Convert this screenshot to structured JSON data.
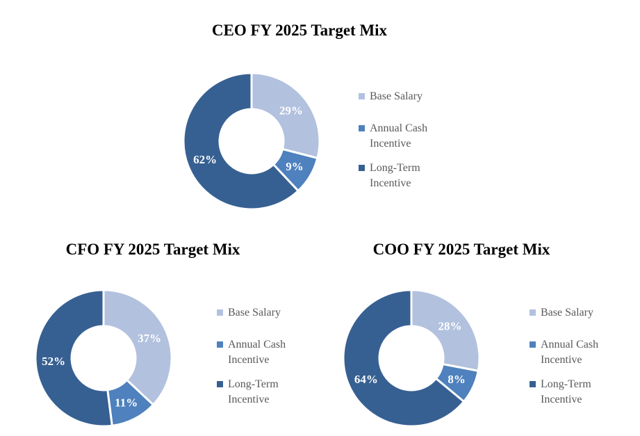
{
  "series_colors": [
    "#B2C1DE",
    "#4E81BD",
    "#376092"
  ],
  "colors": {
    "base_salary": "#B2C1DE",
    "annual_cash_incentive": "#4E81BD",
    "long_term_incentive": "#376092",
    "slice_border": "#FFFFFF",
    "slice_label_text": "#FFFFFF",
    "legend_text": "#595959",
    "title_text": "#000000",
    "background": "#FFFFFF"
  },
  "chart_data": [
    {
      "type": "pie",
      "subtype": "donut",
      "title": "CEO FY 2025 Target Mix",
      "categories": [
        "Base Salary",
        "Annual Cash Incentive",
        "Long-Term Incentive"
      ],
      "values": [
        29,
        9,
        62
      ],
      "data_labels": [
        "29%",
        "9%",
        "62%"
      ],
      "legend_entries": [
        "Base Salary",
        "Annual Cash Incentive",
        "Long-Term Incentive"
      ],
      "legend_position": "right",
      "start_angle_deg": 0,
      "direction": "clockwise"
    },
    {
      "type": "pie",
      "subtype": "donut",
      "title": "CFO FY 2025 Target Mix",
      "categories": [
        "Base Salary",
        "Annual Cash Incentive",
        "Long-Term Incentive"
      ],
      "values": [
        37,
        11,
        52
      ],
      "data_labels": [
        "37%",
        "11%",
        "52%"
      ],
      "legend_entries": [
        "Base Salary",
        "Annual Cash Incentive",
        "Long-Term Incentive"
      ],
      "legend_position": "right",
      "start_angle_deg": 0,
      "direction": "clockwise"
    },
    {
      "type": "pie",
      "subtype": "donut",
      "title": "COO FY 2025 Target Mix",
      "categories": [
        "Base Salary",
        "Annual Cash Incentive",
        "Long-Term Incentive"
      ],
      "values": [
        28,
        8,
        64
      ],
      "data_labels": [
        "28%",
        "8%",
        "64%"
      ],
      "legend_entries": [
        "Base Salary",
        "Annual Cash Incentive",
        "Long-Term Incentive"
      ],
      "legend_position": "right",
      "start_angle_deg": 0,
      "direction": "clockwise"
    }
  ]
}
